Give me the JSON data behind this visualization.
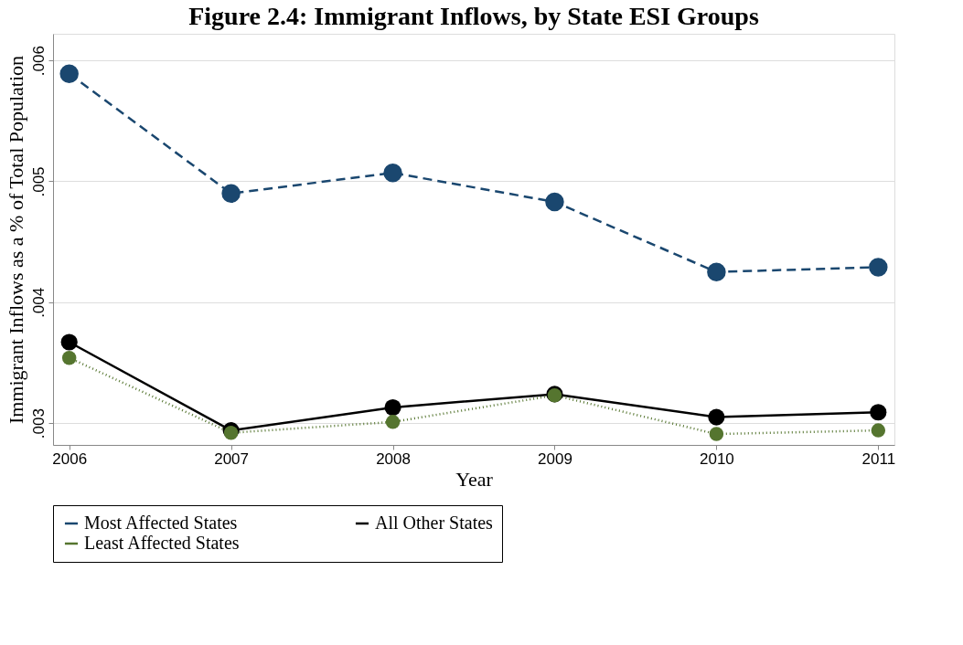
{
  "chart_data": {
    "type": "line",
    "title": "Figure 2.4: Immigrant Inflows, by State ESI Groups",
    "xlabel": "Year",
    "ylabel": "Immigrant Inflows as a % of Total Population",
    "x": [
      2006,
      2007,
      2008,
      2009,
      2010,
      2011
    ],
    "series": [
      {
        "name": "Most Affected States",
        "color": "#1a476f",
        "line_style": "dashed",
        "values": [
          0.00589,
          0.0049,
          0.00507,
          0.00483,
          0.00425,
          0.00429
        ]
      },
      {
        "name": "All Other States",
        "color": "#000000",
        "line_style": "solid",
        "values": [
          0.00367,
          0.00294,
          0.00313,
          0.00324,
          0.00305,
          0.00309
        ]
      },
      {
        "name": "Least Affected States",
        "color": "#55752f",
        "line_style": "dotted",
        "values": [
          0.00354,
          0.00292,
          0.00301,
          0.00323,
          0.00291,
          0.00294
        ]
      }
    ],
    "xlim": [
      2005.9,
      2011.1
    ],
    "xticks": [
      2006,
      2007,
      2008,
      2009,
      2010,
      2011
    ],
    "ylim": [
      0.00282,
      0.00622
    ],
    "yticks": [
      {
        "value": 0.003,
        "label": ".003"
      },
      {
        "value": 0.004,
        "label": ".004"
      },
      {
        "value": 0.005,
        "label": ".005"
      },
      {
        "value": 0.006,
        "label": ".006"
      }
    ],
    "grid": "y",
    "legend": "bottom",
    "marker": "circle"
  }
}
